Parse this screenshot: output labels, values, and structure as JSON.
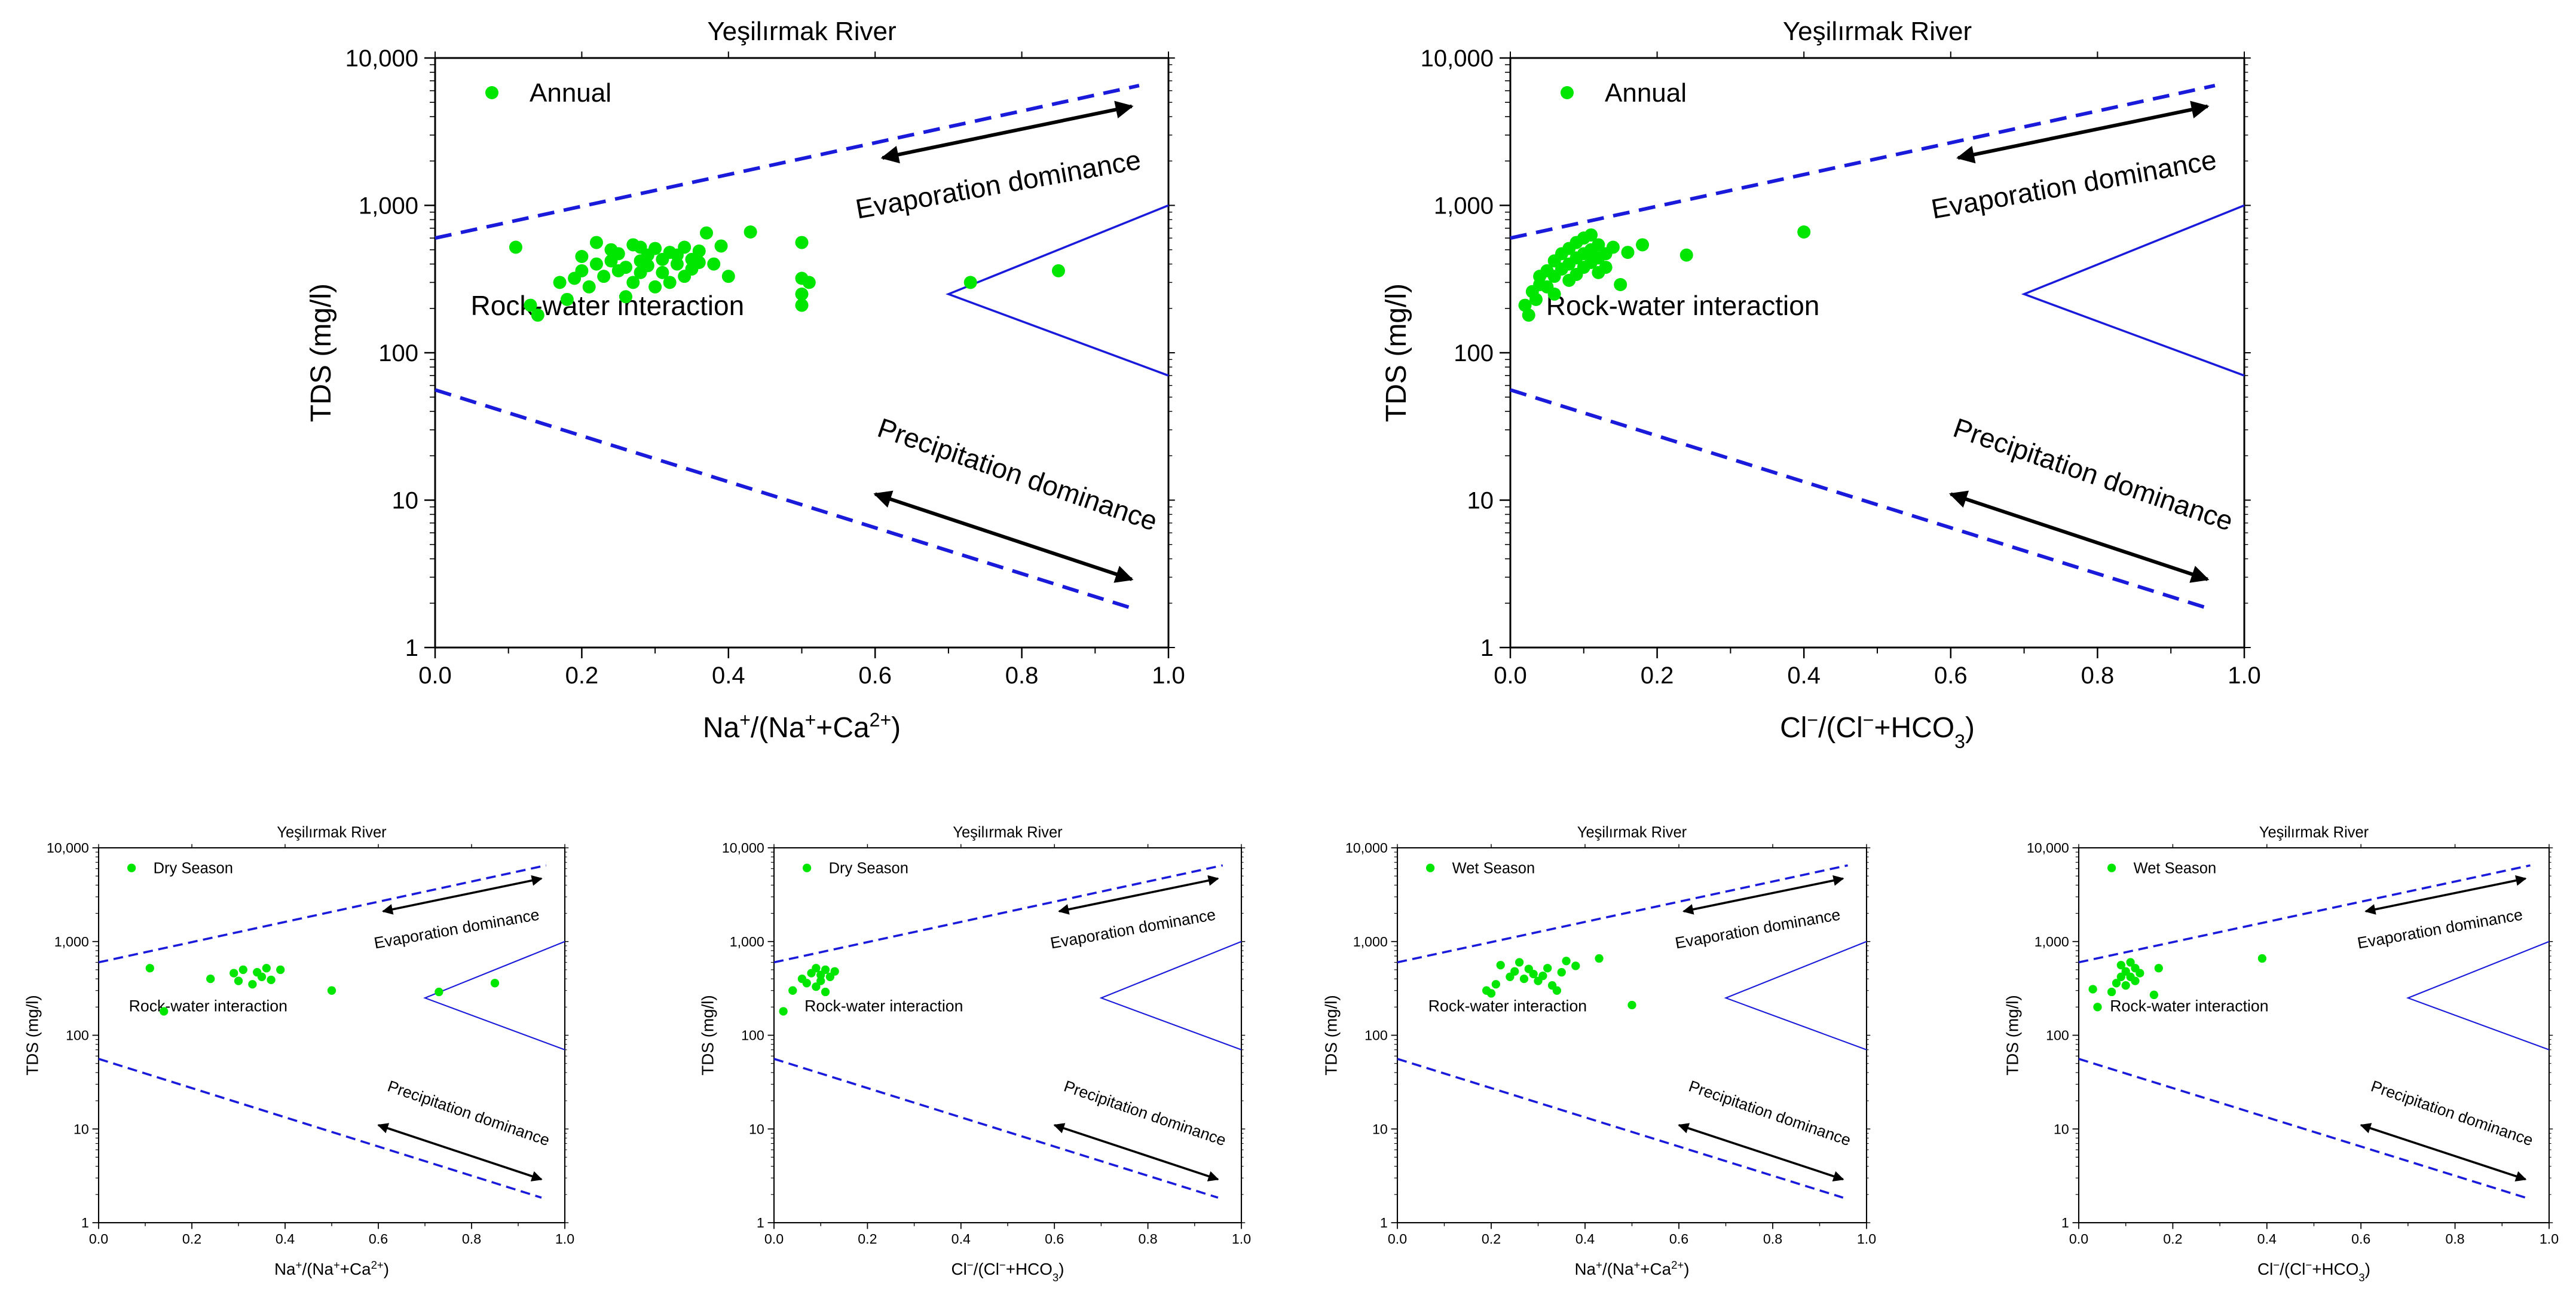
{
  "chart_data": [
    {
      "type": "scatter",
      "title": "Yeşilırmak River",
      "xlabel": {
        "base": "Na",
        "parts": [
          [
            "Na",
            "n"
          ],
          [
            "+",
            "sup"
          ],
          [
            "/(Na",
            "n"
          ],
          [
            "+",
            "sup"
          ],
          [
            "+Ca",
            "n"
          ],
          [
            "2+",
            "sup"
          ],
          [
            ")",
            "n"
          ]
        ]
      },
      "ylabel": "TDS (mg/l)",
      "xlim": [
        0,
        1
      ],
      "ylim": [
        1,
        10000
      ],
      "yscale": "log",
      "xticks": [
        "0.0",
        "0.2",
        "0.4",
        "0.6",
        "0.8",
        "1.0"
      ],
      "yticks": [
        "1",
        "10",
        "100",
        "1,000",
        "10,000"
      ],
      "legend": {
        "label": "Annual",
        "placement": "top-left"
      },
      "annotations": {
        "evaporation": "Evaporation dominance",
        "rock": "Rock-water interaction",
        "precipitation": "Precipitation dominance"
      },
      "point_color": "#00e600",
      "line_color": "#1a1adb",
      "series": [
        {
          "name": "Annual",
          "x": [
            0.11,
            0.13,
            0.14,
            0.17,
            0.18,
            0.19,
            0.2,
            0.2,
            0.21,
            0.22,
            0.22,
            0.23,
            0.24,
            0.24,
            0.25,
            0.25,
            0.26,
            0.26,
            0.27,
            0.27,
            0.28,
            0.28,
            0.28,
            0.29,
            0.29,
            0.3,
            0.3,
            0.31,
            0.31,
            0.32,
            0.32,
            0.33,
            0.33,
            0.34,
            0.34,
            0.35,
            0.35,
            0.36,
            0.36,
            0.37,
            0.38,
            0.39,
            0.4,
            0.43,
            0.5,
            0.5,
            0.5,
            0.5,
            0.51,
            0.73,
            0.85
          ],
          "y": [
            520,
            210,
            180,
            300,
            230,
            320,
            360,
            450,
            280,
            400,
            560,
            330,
            420,
            500,
            360,
            470,
            240,
            380,
            540,
            300,
            420,
            520,
            350,
            460,
            390,
            280,
            510,
            430,
            350,
            480,
            300,
            460,
            400,
            520,
            330,
            430,
            370,
            490,
            410,
            650,
            400,
            530,
            330,
            660,
            560,
            320,
            250,
            210,
            300,
            300,
            360
          ]
        }
      ]
    },
    {
      "type": "scatter",
      "title": "Yeşilırmak River",
      "xlabel": {
        "parts": [
          [
            "Cl",
            "n"
          ],
          [
            "−",
            "sup"
          ],
          [
            "/(Cl",
            "n"
          ],
          [
            "−",
            "sup"
          ],
          [
            "+HCO",
            "n"
          ],
          [
            "3",
            "subsup"
          ],
          [
            ")",
            "n"
          ]
        ]
      },
      "ylabel": "TDS (mg/l)",
      "xlim": [
        0,
        1
      ],
      "ylim": [
        1,
        10000
      ],
      "yscale": "log",
      "xticks": [
        "0.0",
        "0.2",
        "0.4",
        "0.6",
        "0.8",
        "1.0"
      ],
      "yticks": [
        "1",
        "10",
        "100",
        "1,000",
        "10,000"
      ],
      "legend": {
        "label": "Annual",
        "placement": "top-left"
      },
      "annotations": {
        "evaporation": "Evaporation dominance",
        "rock": "Rock-water interaction",
        "precipitation": "Precipitation dominance"
      },
      "point_color": "#00e600",
      "line_color": "#1a1adb",
      "series": [
        {
          "name": "Annual",
          "x": [
            0.02,
            0.025,
            0.03,
            0.035,
            0.04,
            0.04,
            0.05,
            0.05,
            0.06,
            0.06,
            0.06,
            0.07,
            0.07,
            0.08,
            0.08,
            0.08,
            0.09,
            0.09,
            0.09,
            0.1,
            0.1,
            0.1,
            0.11,
            0.11,
            0.11,
            0.12,
            0.12,
            0.12,
            0.13,
            0.13,
            0.14,
            0.15,
            0.16,
            0.18,
            0.24,
            0.4
          ],
          "y": [
            210,
            180,
            260,
            230,
            330,
            290,
            360,
            280,
            420,
            330,
            250,
            470,
            370,
            510,
            400,
            310,
            560,
            440,
            340,
            600,
            470,
            380,
            630,
            500,
            410,
            540,
            440,
            350,
            470,
            380,
            520,
            290,
            480,
            540,
            460,
            660
          ]
        }
      ]
    },
    {
      "type": "scatter",
      "title": "Yeşilırmak River",
      "xlabel": {
        "parts": [
          [
            "Na",
            "n"
          ],
          [
            "+",
            "sup"
          ],
          [
            "/(Na",
            "n"
          ],
          [
            "+",
            "sup"
          ],
          [
            "+Ca",
            "n"
          ],
          [
            "2+",
            "sup"
          ],
          [
            ")",
            "n"
          ]
        ]
      },
      "ylabel": "TDS (mg/l)",
      "xlim": [
        0,
        1
      ],
      "ylim": [
        1,
        10000
      ],
      "yscale": "log",
      "xticks": [
        "0.0",
        "0.2",
        "0.4",
        "0.6",
        "0.8",
        "1.0"
      ],
      "yticks": [
        "1",
        "10",
        "100",
        "1,000",
        "10,000"
      ],
      "legend": {
        "label": "Dry Season",
        "placement": "top-left"
      },
      "annotations": {
        "evaporation": "Evaporation dominance",
        "rock": "Rock-water interaction",
        "precipitation": "Precipitation dominance"
      },
      "point_color": "#00e600",
      "line_color": "#1a1adb",
      "series": [
        {
          "name": "Dry Season",
          "x": [
            0.11,
            0.14,
            0.24,
            0.29,
            0.3,
            0.31,
            0.33,
            0.34,
            0.35,
            0.36,
            0.37,
            0.39,
            0.5,
            0.73,
            0.85
          ],
          "y": [
            520,
            180,
            400,
            460,
            380,
            500,
            350,
            470,
            420,
            520,
            390,
            500,
            300,
            290,
            360
          ]
        }
      ]
    },
    {
      "type": "scatter",
      "title": "Yeşilırmak River",
      "xlabel": {
        "parts": [
          [
            "Cl",
            "n"
          ],
          [
            "−",
            "sup"
          ],
          [
            "/(Cl",
            "n"
          ],
          [
            "−",
            "sup"
          ],
          [
            "+HCO",
            "n"
          ],
          [
            "3",
            "subsup"
          ],
          [
            ")",
            "n"
          ]
        ]
      },
      "ylabel": "TDS (mg/l)",
      "xlim": [
        0,
        1
      ],
      "ylim": [
        1,
        10000
      ],
      "yscale": "log",
      "xticks": [
        "0.0",
        "0.2",
        "0.4",
        "0.6",
        "0.8",
        "1.0"
      ],
      "yticks": [
        "1",
        "10",
        "100",
        "1,000",
        "10,000"
      ],
      "legend": {
        "label": "Dry Season",
        "placement": "top-left"
      },
      "annotations": {
        "evaporation": "Evaporation dominance",
        "rock": "Rock-water interaction",
        "precipitation": "Precipitation dominance"
      },
      "point_color": "#00e600",
      "line_color": "#1a1adb",
      "series": [
        {
          "name": "Dry Season",
          "x": [
            0.02,
            0.04,
            0.06,
            0.07,
            0.08,
            0.09,
            0.09,
            0.1,
            0.1,
            0.11,
            0.11,
            0.12,
            0.13
          ],
          "y": [
            180,
            300,
            400,
            360,
            460,
            520,
            330,
            440,
            380,
            500,
            290,
            420,
            480
          ]
        }
      ]
    },
    {
      "type": "scatter",
      "title": "Yeşilırmak River",
      "xlabel": {
        "parts": [
          [
            "Na",
            "n"
          ],
          [
            "+",
            "sup"
          ],
          [
            "/(Na",
            "n"
          ],
          [
            "+",
            "sup"
          ],
          [
            "+Ca",
            "n"
          ],
          [
            "2+",
            "sup"
          ],
          [
            ")",
            "n"
          ]
        ]
      },
      "ylabel": "TDS (mg/l)",
      "xlim": [
        0,
        1
      ],
      "ylim": [
        1,
        10000
      ],
      "yscale": "log",
      "xticks": [
        "0.0",
        "0.2",
        "0.4",
        "0.6",
        "0.8",
        "1.0"
      ],
      "yticks": [
        "1",
        "10",
        "100",
        "1,000",
        "10,000"
      ],
      "legend": {
        "label": "Wet Season",
        "placement": "top-left"
      },
      "annotations": {
        "evaporation": "Evaporation dominance",
        "rock": "Rock-water interaction",
        "precipitation": "Precipitation dominance"
      },
      "point_color": "#00e600",
      "line_color": "#1a1adb",
      "series": [
        {
          "name": "Wet Season",
          "x": [
            0.19,
            0.2,
            0.21,
            0.22,
            0.24,
            0.25,
            0.26,
            0.27,
            0.28,
            0.29,
            0.3,
            0.31,
            0.32,
            0.33,
            0.34,
            0.35,
            0.36,
            0.38,
            0.43,
            0.5
          ],
          "y": [
            300,
            280,
            350,
            560,
            420,
            480,
            600,
            400,
            510,
            450,
            380,
            430,
            520,
            340,
            300,
            470,
            620,
            550,
            660,
            210
          ]
        }
      ]
    },
    {
      "type": "scatter",
      "title": "Yeşilırmak River",
      "xlabel": {
        "parts": [
          [
            "Cl",
            "n"
          ],
          [
            "−",
            "sup"
          ],
          [
            "/(Cl",
            "n"
          ],
          [
            "−",
            "sup"
          ],
          [
            "+HCO",
            "n"
          ],
          [
            "3",
            "subsup"
          ],
          [
            ")",
            "n"
          ]
        ]
      },
      "ylabel": "TDS (mg/l)",
      "xlim": [
        0,
        1
      ],
      "ylim": [
        1,
        10000
      ],
      "yscale": "log",
      "xticks": [
        "0.0",
        "0.2",
        "0.4",
        "0.6",
        "0.8",
        "1.0"
      ],
      "yticks": [
        "1",
        "10",
        "100",
        "1,000",
        "10,000"
      ],
      "legend": {
        "label": "Wet Season",
        "placement": "top-left"
      },
      "annotations": {
        "evaporation": "Evaporation dominance",
        "rock": "Rock-water interaction",
        "precipitation": "Precipitation dominance"
      },
      "point_color": "#00e600",
      "line_color": "#1a1adb",
      "series": [
        {
          "name": "Wet Season",
          "x": [
            0.03,
            0.04,
            0.07,
            0.08,
            0.09,
            0.09,
            0.1,
            0.1,
            0.11,
            0.11,
            0.12,
            0.12,
            0.13,
            0.16,
            0.17,
            0.39
          ],
          "y": [
            310,
            200,
            290,
            360,
            420,
            560,
            480,
            340,
            600,
            420,
            520,
            380,
            460,
            270,
            520,
            660
          ]
        }
      ]
    }
  ]
}
